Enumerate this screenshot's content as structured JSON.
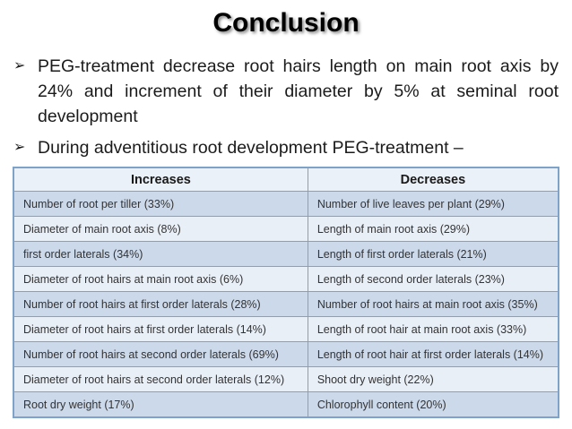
{
  "slide": {
    "title": "Conclusion",
    "bullet_glyph": "➢",
    "bullets": [
      "PEG-treatment decrease root hairs length on main root axis by 24% and increment of their diameter by 5% at seminal root development",
      "During adventitious root development PEG-treatment –"
    ]
  },
  "table": {
    "headers": [
      "Increases",
      "Decreases"
    ],
    "rows": [
      [
        "Number of root per tiller (33%)",
        "Number of live leaves per plant (29%)"
      ],
      [
        "Diameter of main root axis (8%)",
        "Length of main root axis (29%)"
      ],
      [
        "first order laterals (34%)",
        "Length of first order laterals (21%)"
      ],
      [
        "Diameter of root hairs at main root axis (6%)",
        "Length of second order laterals (23%)"
      ],
      [
        "Number of root hairs at first order laterals (28%)",
        "Number of root hairs at main root axis (35%)"
      ],
      [
        "Diameter of root hairs at first order laterals (14%)",
        "Length of root hair at main root axis (33%)"
      ],
      [
        "Number of root hairs at second order laterals (69%)",
        "Length of root hair at first order laterals (14%)"
      ],
      [
        "Diameter of root hairs at second order laterals (12%)",
        "Shoot dry weight (22%)"
      ],
      [
        "Root dry weight (17%)",
        "Chlorophyll content (20%)"
      ]
    ]
  },
  "colors": {
    "border": "#7ea2c8",
    "band_dark": "#ccd9ea",
    "band_light": "#e9eff7",
    "header_bg": "#eaf1f8"
  }
}
